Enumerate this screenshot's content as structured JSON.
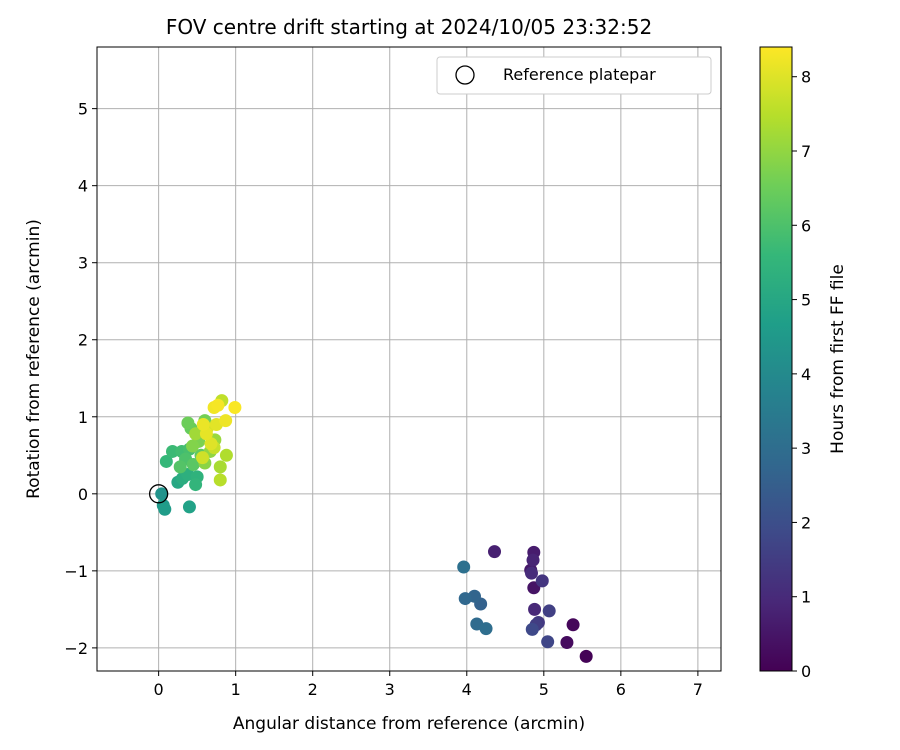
{
  "chart_data": {
    "type": "scatter",
    "title": "FOV centre drift starting at 2024/10/05 23:32:52",
    "xlabel": "Angular distance from reference (arcmin)",
    "ylabel": "Rotation from reference (arcmin)",
    "xlim": [
      -0.8,
      7.3
    ],
    "ylim": [
      -2.3,
      5.8
    ],
    "xticks": [
      0,
      1,
      2,
      3,
      4,
      5,
      6,
      7
    ],
    "yticks": [
      -2,
      -1,
      0,
      1,
      2,
      3,
      4,
      5
    ],
    "grid": true,
    "legend": {
      "placement": "top-right",
      "entries": [
        "Reference platepar"
      ]
    },
    "reference_point": {
      "name": "Reference platepar",
      "x": 0,
      "y": 0
    },
    "colorbar": {
      "label": "Hours from first FF file",
      "range": [
        0,
        8.4
      ],
      "ticks": [
        0,
        1,
        2,
        3,
        4,
        5,
        6,
        7,
        8
      ],
      "colormap": "viridis"
    },
    "points": [
      {
        "x": 5.55,
        "y": -2.11,
        "c": 0.05
      },
      {
        "x": 5.38,
        "y": -1.7,
        "c": 0.15
      },
      {
        "x": 5.3,
        "y": -1.93,
        "c": 0.25
      },
      {
        "x": 4.87,
        "y": -1.22,
        "c": 0.45
      },
      {
        "x": 4.83,
        "y": -0.99,
        "c": 0.55
      },
      {
        "x": 4.87,
        "y": -0.76,
        "c": 0.65
      },
      {
        "x": 4.36,
        "y": -0.75,
        "c": 0.75
      },
      {
        "x": 4.86,
        "y": -0.86,
        "c": 0.85
      },
      {
        "x": 4.88,
        "y": -1.5,
        "c": 0.95
      },
      {
        "x": 4.84,
        "y": -1.03,
        "c": 1.05
      },
      {
        "x": 4.98,
        "y": -1.13,
        "c": 1.3
      },
      {
        "x": 4.93,
        "y": -1.67,
        "c": 1.4
      },
      {
        "x": 4.9,
        "y": -1.7,
        "c": 1.5
      },
      {
        "x": 5.07,
        "y": -1.52,
        "c": 1.6
      },
      {
        "x": 5.05,
        "y": -1.92,
        "c": 1.75
      },
      {
        "x": 4.85,
        "y": -1.76,
        "c": 1.85
      },
      {
        "x": 4.18,
        "y": -1.43,
        "c": 2.6
      },
      {
        "x": 4.1,
        "y": -1.33,
        "c": 2.7
      },
      {
        "x": 3.98,
        "y": -1.36,
        "c": 2.8
      },
      {
        "x": 4.13,
        "y": -1.69,
        "c": 2.9
      },
      {
        "x": 4.25,
        "y": -1.75,
        "c": 3.0
      },
      {
        "x": 3.96,
        "y": -0.95,
        "c": 3.1
      },
      {
        "x": 0.04,
        "y": 0.0,
        "c": 4.3
      },
      {
        "x": 0.06,
        "y": -0.15,
        "c": 4.5
      },
      {
        "x": 0.08,
        "y": -0.2,
        "c": 4.6
      },
      {
        "x": 0.4,
        "y": -0.17,
        "c": 4.8
      },
      {
        "x": 0.25,
        "y": 0.15,
        "c": 5.0
      },
      {
        "x": 0.31,
        "y": 0.2,
        "c": 5.2
      },
      {
        "x": 0.38,
        "y": 0.25,
        "c": 5.3
      },
      {
        "x": 0.5,
        "y": 0.22,
        "c": 5.4
      },
      {
        "x": 0.48,
        "y": 0.12,
        "c": 5.5
      },
      {
        "x": 0.1,
        "y": 0.42,
        "c": 5.6
      },
      {
        "x": 0.18,
        "y": 0.55,
        "c": 5.7
      },
      {
        "x": 0.3,
        "y": 0.55,
        "c": 5.8
      },
      {
        "x": 0.4,
        "y": 0.58,
        "c": 5.9
      },
      {
        "x": 0.35,
        "y": 0.45,
        "c": 6.0
      },
      {
        "x": 0.28,
        "y": 0.35,
        "c": 6.1
      },
      {
        "x": 0.45,
        "y": 0.38,
        "c": 6.2
      },
      {
        "x": 0.55,
        "y": 0.5,
        "c": 6.3
      },
      {
        "x": 0.42,
        "y": 0.85,
        "c": 6.4
      },
      {
        "x": 0.38,
        "y": 0.92,
        "c": 6.5
      },
      {
        "x": 0.6,
        "y": 0.95,
        "c": 6.6
      },
      {
        "x": 0.52,
        "y": 0.68,
        "c": 6.7
      },
      {
        "x": 0.44,
        "y": 0.62,
        "c": 6.8
      },
      {
        "x": 0.6,
        "y": 0.4,
        "c": 6.9
      },
      {
        "x": 0.67,
        "y": 0.55,
        "c": 7.0
      },
      {
        "x": 0.73,
        "y": 0.7,
        "c": 7.1
      },
      {
        "x": 0.48,
        "y": 0.78,
        "c": 7.2
      },
      {
        "x": 0.8,
        "y": 0.35,
        "c": 7.3
      },
      {
        "x": 0.88,
        "y": 0.5,
        "c": 7.4
      },
      {
        "x": 0.8,
        "y": 0.18,
        "c": 7.5
      },
      {
        "x": 0.82,
        "y": 1.21,
        "c": 7.6
      },
      {
        "x": 0.72,
        "y": 0.6,
        "c": 7.7
      },
      {
        "x": 0.57,
        "y": 0.47,
        "c": 7.8
      },
      {
        "x": 0.63,
        "y": 0.85,
        "c": 7.9
      },
      {
        "x": 0.68,
        "y": 0.65,
        "c": 8.0
      },
      {
        "x": 0.75,
        "y": 0.9,
        "c": 8.05
      },
      {
        "x": 0.62,
        "y": 0.78,
        "c": 8.1
      },
      {
        "x": 0.58,
        "y": 0.9,
        "c": 8.15
      },
      {
        "x": 0.87,
        "y": 0.95,
        "c": 8.2
      },
      {
        "x": 0.72,
        "y": 1.12,
        "c": 8.25
      },
      {
        "x": 0.77,
        "y": 1.15,
        "c": 8.3
      },
      {
        "x": 0.99,
        "y": 1.12,
        "c": 8.35
      }
    ]
  }
}
